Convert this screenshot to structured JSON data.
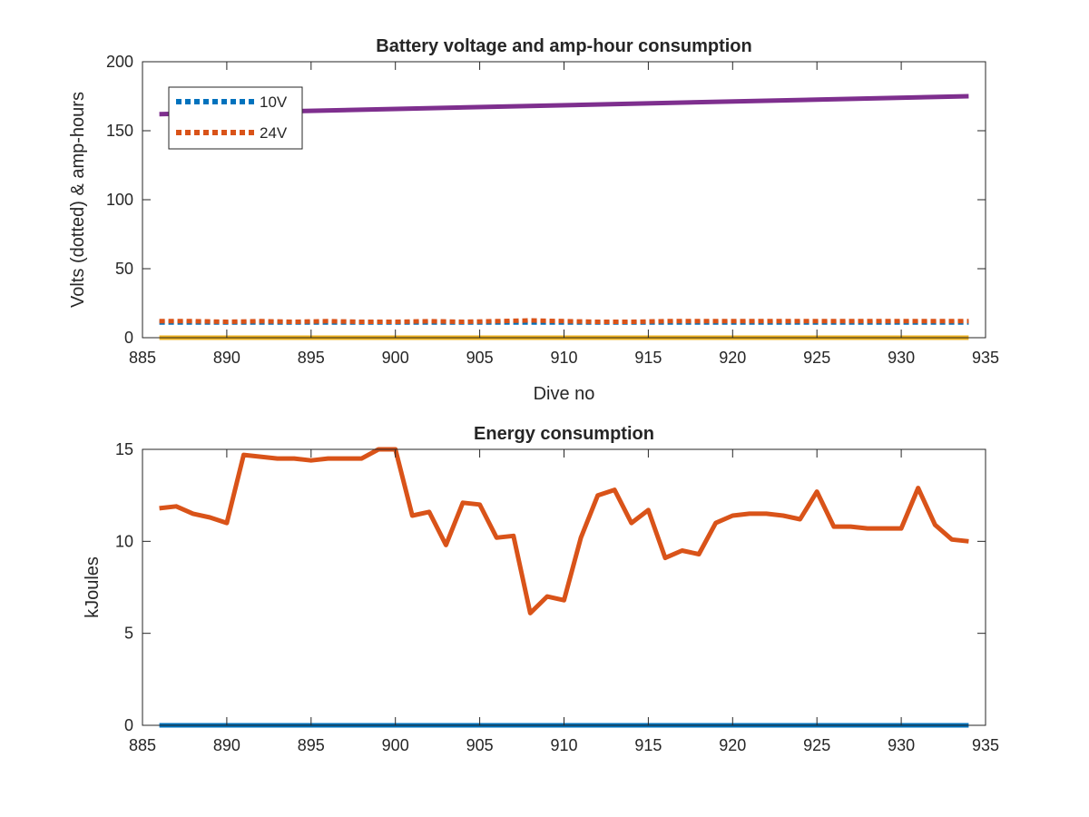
{
  "chart_data": [
    {
      "type": "line",
      "title": "Battery voltage and amp-hour consumption",
      "xlabel": "Dive no",
      "ylabel": "Volts (dotted) & amp-hours",
      "xlim": [
        885,
        935
      ],
      "ylim": [
        0,
        200
      ],
      "xticks": [
        885,
        890,
        895,
        900,
        905,
        910,
        915,
        920,
        925,
        930,
        935
      ],
      "yticks": [
        0,
        50,
        100,
        150,
        200
      ],
      "legend": {
        "placement": "top-left",
        "entries": [
          "10V",
          "24V"
        ]
      },
      "series": [
        {
          "name": "10V",
          "style": "dotted",
          "color": "#0072BD",
          "x": [
            886,
            934
          ],
          "y": [
            11,
            11
          ]
        },
        {
          "name": "24V",
          "style": "dotted",
          "color": "#D95319",
          "x": [
            886,
            888,
            890,
            892,
            894,
            896,
            898,
            900,
            902,
            904,
            906,
            908,
            910,
            912,
            914,
            916,
            918,
            920,
            922,
            924,
            926,
            928,
            930,
            932,
            934
          ],
          "y": [
            12,
            12,
            11.5,
            12,
            11.5,
            12,
            11.5,
            11.5,
            12,
            11.5,
            12,
            12.5,
            12,
            11.5,
            11.5,
            12,
            12,
            12,
            12,
            12,
            12,
            12,
            12,
            12,
            12
          ]
        },
        {
          "style": "solid",
          "color": "#EDB120",
          "x": [
            886,
            934
          ],
          "y": [
            0,
            0
          ]
        },
        {
          "style": "solid",
          "color": "#7E2F8E",
          "x": [
            886,
            934
          ],
          "y": [
            162,
            175
          ]
        }
      ]
    },
    {
      "type": "line",
      "title": "Energy consumption",
      "xlabel": "",
      "ylabel": "kJoules",
      "xlim": [
        885,
        935
      ],
      "ylim": [
        0,
        15
      ],
      "xticks": [
        885,
        890,
        895,
        900,
        905,
        910,
        915,
        920,
        925,
        930,
        935
      ],
      "yticks": [
        0,
        5,
        10,
        15
      ],
      "series": [
        {
          "style": "solid",
          "color": "#0072BD",
          "x": [
            886,
            934
          ],
          "y": [
            0,
            0
          ]
        },
        {
          "style": "solid",
          "color": "#D95319",
          "x": [
            886,
            887,
            888,
            889,
            890,
            891,
            892,
            893,
            894,
            895,
            896,
            897,
            898,
            899,
            900,
            901,
            902,
            903,
            904,
            905,
            906,
            907,
            908,
            909,
            910,
            911,
            912,
            913,
            914,
            915,
            916,
            917,
            918,
            919,
            920,
            921,
            922,
            923,
            924,
            925,
            926,
            927,
            928,
            929,
            930,
            931,
            932,
            933,
            934
          ],
          "y": [
            11.8,
            11.9,
            11.5,
            11.3,
            11.0,
            14.7,
            14.6,
            14.5,
            14.5,
            14.4,
            14.5,
            14.5,
            14.5,
            15.0,
            15.0,
            11.4,
            11.6,
            9.8,
            12.1,
            12.0,
            10.2,
            10.3,
            6.1,
            7.0,
            6.8,
            10.2,
            12.5,
            12.8,
            11.0,
            11.7,
            9.1,
            9.5,
            9.3,
            11.0,
            11.4,
            11.5,
            11.5,
            11.4,
            11.2,
            12.7,
            10.8,
            10.8,
            10.7,
            10.7,
            10.7,
            12.9,
            10.9,
            10.1,
            10.0
          ]
        }
      ]
    }
  ]
}
